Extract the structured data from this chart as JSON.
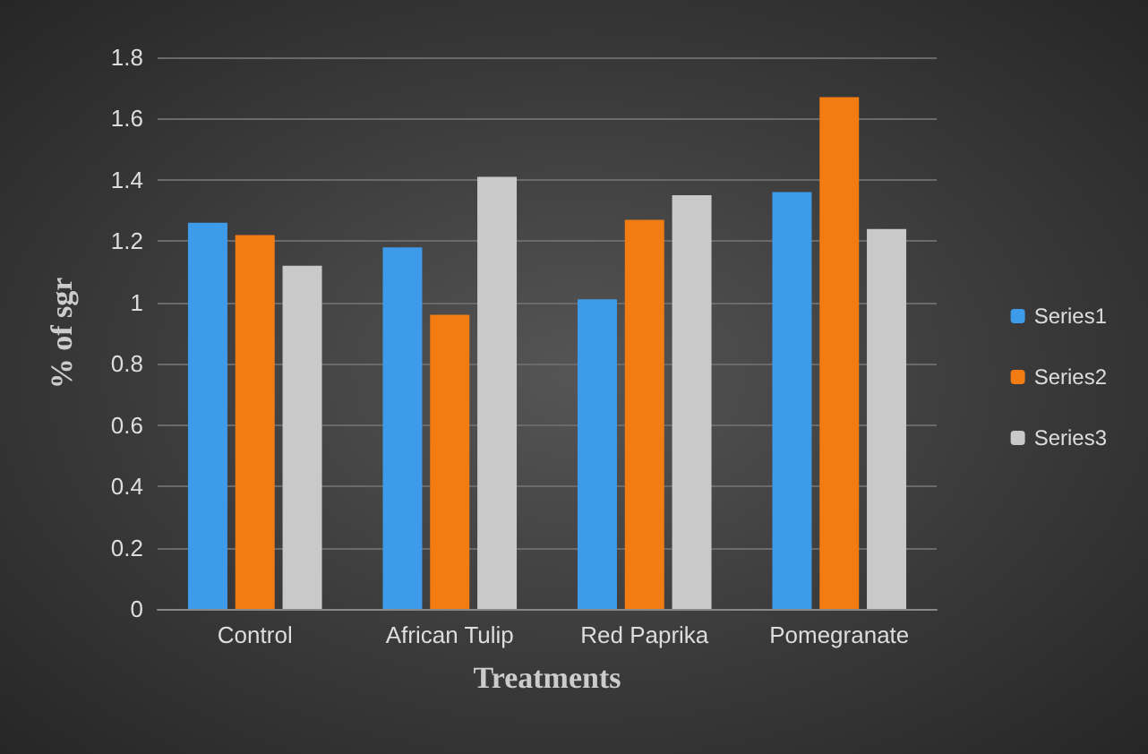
{
  "chart_data": {
    "type": "bar",
    "xlabel": "Treatments",
    "ylabel": "% of sgr",
    "categories": [
      "Control",
      "African Tulip",
      "Red Paprika",
      "Pomegranate"
    ],
    "series": [
      {
        "name": "Series1",
        "color": "#3d9be9",
        "values": [
          1.26,
          1.18,
          1.01,
          1.36
        ]
      },
      {
        "name": "Series2",
        "color": "#f27c12",
        "values": [
          1.22,
          0.96,
          1.27,
          1.67
        ]
      },
      {
        "name": "Series3",
        "color": "#c9c9c9",
        "values": [
          1.12,
          1.41,
          1.35,
          1.24
        ]
      }
    ],
    "ylim": [
      0,
      1.8
    ],
    "yticks": [
      0,
      0.2,
      0.4,
      0.6,
      0.8,
      1,
      1.2,
      1.4,
      1.6,
      1.8
    ],
    "grid": "y",
    "legend": "right"
  }
}
